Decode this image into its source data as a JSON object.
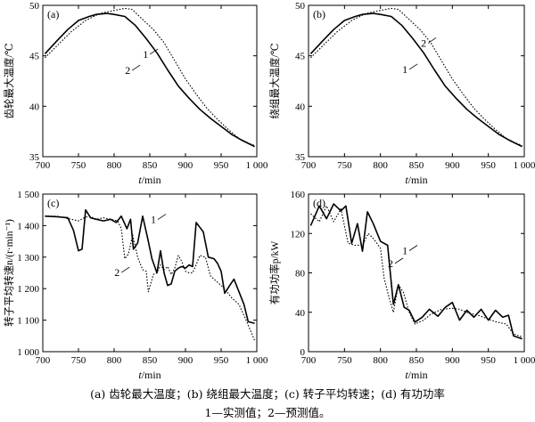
{
  "caption": {
    "line1": "(a) 齿轮最大温度；(b) 绕组最大温度；(c) 转子平均转速；(d) 有功功率",
    "line2": "1—实测值；2—预测值。"
  },
  "chart_data": [
    {
      "type": "line",
      "panel": "(a)",
      "xlabel": "t/min",
      "ylabel": "齿轮最大温度/℃",
      "xlim": [
        700,
        1000
      ],
      "ylim": [
        35,
        50
      ],
      "xticks": [
        700,
        750,
        800,
        850,
        900,
        950,
        1000
      ],
      "xtick_labels": [
        "700",
        "750",
        "800",
        "850",
        "900",
        "950",
        "1 000"
      ],
      "yticks": [
        35,
        40,
        45,
        50
      ],
      "ytick_labels": [
        "35",
        "40",
        "45",
        "50"
      ],
      "series": [
        {
          "name": "1",
          "style": "dotted",
          "points": [
            [
              703,
              44.8
            ],
            [
              720,
              46.0
            ],
            [
              740,
              47.4
            ],
            [
              760,
              48.5
            ],
            [
              780,
              49.2
            ],
            [
              800,
              49.5
            ],
            [
              815,
              49.7
            ],
            [
              825,
              49.6
            ],
            [
              840,
              48.6
            ],
            [
              855,
              47.6
            ],
            [
              870,
              46.3
            ],
            [
              885,
              44.5
            ],
            [
              900,
              42.7
            ],
            [
              915,
              41.2
            ],
            [
              930,
              39.8
            ],
            [
              945,
              38.7
            ],
            [
              960,
              37.7
            ],
            [
              975,
              36.8
            ],
            [
              990,
              36.3
            ],
            [
              997,
              36.1
            ]
          ]
        },
        {
          "name": "2",
          "style": "solid",
          "points": [
            [
              703,
              45.2
            ],
            [
              720,
              46.5
            ],
            [
              735,
              47.6
            ],
            [
              750,
              48.5
            ],
            [
              765,
              48.9
            ],
            [
              775,
              49.1
            ],
            [
              790,
              49.2
            ],
            [
              800,
              49.1
            ],
            [
              815,
              48.9
            ],
            [
              830,
              48.0
            ],
            [
              845,
              46.7
            ],
            [
              860,
              45.3
            ],
            [
              875,
              43.6
            ],
            [
              890,
              42.0
            ],
            [
              905,
              40.8
            ],
            [
              920,
              39.7
            ],
            [
              935,
              38.8
            ],
            [
              950,
              38.0
            ],
            [
              965,
              37.2
            ],
            [
              980,
              36.6
            ],
            [
              997,
              36.0
            ]
          ]
        }
      ],
      "annotations": [
        {
          "text": "1",
          "x": 844,
          "y": 44.8
        },
        {
          "text": "2",
          "x": 819,
          "y": 43.2
        }
      ]
    },
    {
      "type": "line",
      "panel": "(b)",
      "xlabel": "t/min",
      "ylabel": "绕组最大温度/℃",
      "xlim": [
        700,
        1000
      ],
      "ylim": [
        35,
        50
      ],
      "xticks": [
        700,
        750,
        800,
        850,
        900,
        950,
        1000
      ],
      "xtick_labels": [
        "700",
        "750",
        "800",
        "850",
        "900",
        "950",
        "1 000"
      ],
      "yticks": [
        35,
        40,
        45,
        50
      ],
      "ytick_labels": [
        "35",
        "40",
        "45",
        "50"
      ],
      "series": [
        {
          "name": "2",
          "style": "dotted",
          "points": [
            [
              703,
              44.8
            ],
            [
              720,
              46.0
            ],
            [
              740,
              47.4
            ],
            [
              760,
              48.5
            ],
            [
              780,
              49.2
            ],
            [
              800,
              49.5
            ],
            [
              815,
              49.7
            ],
            [
              825,
              49.6
            ],
            [
              840,
              48.6
            ],
            [
              855,
              47.6
            ],
            [
              870,
              46.3
            ],
            [
              885,
              44.5
            ],
            [
              900,
              42.7
            ],
            [
              915,
              41.2
            ],
            [
              930,
              39.8
            ],
            [
              945,
              38.7
            ],
            [
              960,
              37.7
            ],
            [
              975,
              36.8
            ],
            [
              990,
              36.3
            ],
            [
              997,
              36.1
            ]
          ]
        },
        {
          "name": "1",
          "style": "solid",
          "points": [
            [
              703,
              45.2
            ],
            [
              720,
              46.5
            ],
            [
              735,
              47.6
            ],
            [
              750,
              48.5
            ],
            [
              765,
              48.9
            ],
            [
              775,
              49.1
            ],
            [
              790,
              49.2
            ],
            [
              800,
              49.1
            ],
            [
              815,
              48.9
            ],
            [
              830,
              48.0
            ],
            [
              845,
              46.7
            ],
            [
              860,
              45.3
            ],
            [
              875,
              43.6
            ],
            [
              890,
              42.0
            ],
            [
              905,
              40.8
            ],
            [
              920,
              39.7
            ],
            [
              935,
              38.8
            ],
            [
              950,
              38.0
            ],
            [
              965,
              37.2
            ],
            [
              980,
              36.6
            ],
            [
              997,
              36.0
            ]
          ]
        }
      ],
      "annotations": [
        {
          "text": "2",
          "x": 860,
          "y": 45.9
        },
        {
          "text": "1",
          "x": 834,
          "y": 43.3
        }
      ]
    },
    {
      "type": "line",
      "panel": "(c)",
      "xlabel": "t/min",
      "ylabel": "转子平均转速n/(r·min⁻¹)",
      "xlim": [
        700,
        1000
      ],
      "ylim": [
        1000,
        1500
      ],
      "xticks": [
        700,
        750,
        800,
        850,
        900,
        950,
        1000
      ],
      "xtick_labels": [
        "700",
        "750",
        "800",
        "850",
        "900",
        "950",
        "1 000"
      ],
      "yticks": [
        1000,
        1100,
        1200,
        1300,
        1400,
        1500
      ],
      "ytick_labels": [
        "1 000",
        "1 100",
        "1 200",
        "1 300",
        "1 400",
        "1 500"
      ],
      "series": [
        {
          "name": "1",
          "style": "solid",
          "points": [
            [
              703,
              1430
            ],
            [
              720,
              1428
            ],
            [
              735,
              1425
            ],
            [
              743,
              1385
            ],
            [
              750,
              1320
            ],
            [
              755,
              1325
            ],
            [
              760,
              1450
            ],
            [
              767,
              1425
            ],
            [
              775,
              1420
            ],
            [
              785,
              1415
            ],
            [
              795,
              1420
            ],
            [
              803,
              1410
            ],
            [
              810,
              1430
            ],
            [
              818,
              1390
            ],
            [
              823,
              1420
            ],
            [
              827,
              1325
            ],
            [
              833,
              1345
            ],
            [
              840,
              1430
            ],
            [
              847,
              1360
            ],
            [
              853,
              1295
            ],
            [
              860,
              1250
            ],
            [
              865,
              1320
            ],
            [
              870,
              1250
            ],
            [
              875,
              1210
            ],
            [
              880,
              1215
            ],
            [
              885,
              1255
            ],
            [
              890,
              1265
            ],
            [
              895,
              1270
            ],
            [
              900,
              1265
            ],
            [
              905,
              1275
            ],
            [
              910,
              1270
            ],
            [
              915,
              1410
            ],
            [
              920,
              1395
            ],
            [
              925,
              1380
            ],
            [
              932,
              1300
            ],
            [
              940,
              1295
            ],
            [
              945,
              1280
            ],
            [
              950,
              1255
            ],
            [
              955,
              1185
            ],
            [
              962,
              1210
            ],
            [
              968,
              1230
            ],
            [
              975,
              1190
            ],
            [
              982,
              1150
            ],
            [
              988,
              1095
            ],
            [
              997,
              1090
            ]
          ]
        },
        {
          "name": "2",
          "style": "dotted",
          "points": [
            [
              703,
              1430
            ],
            [
              720,
              1430
            ],
            [
              740,
              1420
            ],
            [
              750,
              1415
            ],
            [
              758,
              1425
            ],
            [
              765,
              1430
            ],
            [
              775,
              1420
            ],
            [
              785,
              1425
            ],
            [
              795,
              1420
            ],
            [
              805,
              1415
            ],
            [
              810,
              1390
            ],
            [
              815,
              1295
            ],
            [
              820,
              1310
            ],
            [
              826,
              1370
            ],
            [
              833,
              1300
            ],
            [
              840,
              1260
            ],
            [
              845,
              1255
            ],
            [
              848,
              1190
            ],
            [
              855,
              1245
            ],
            [
              860,
              1250
            ],
            [
              865,
              1275
            ],
            [
              870,
              1260
            ],
            [
              875,
              1270
            ],
            [
              880,
              1245
            ],
            [
              885,
              1265
            ],
            [
              890,
              1305
            ],
            [
              895,
              1285
            ],
            [
              900,
              1255
            ],
            [
              905,
              1250
            ],
            [
              910,
              1250
            ],
            [
              915,
              1275
            ],
            [
              920,
              1305
            ],
            [
              928,
              1300
            ],
            [
              935,
              1240
            ],
            [
              945,
              1220
            ],
            [
              955,
              1200
            ],
            [
              965,
              1170
            ],
            [
              975,
              1150
            ],
            [
              985,
              1100
            ],
            [
              997,
              1035
            ]
          ]
        }
      ],
      "annotations": [
        {
          "text": "1",
          "x": 855,
          "y": 1408
        },
        {
          "text": "2",
          "x": 804,
          "y": 1240
        }
      ]
    },
    {
      "type": "line",
      "panel": "(d)",
      "xlabel": "t/min",
      "ylabel": "有功功率p/kW",
      "xlim": [
        700,
        1000
      ],
      "ylim": [
        0,
        160
      ],
      "xticks": [
        700,
        750,
        800,
        850,
        900,
        950,
        1000
      ],
      "xtick_labels": [
        "700",
        "750",
        "800",
        "850",
        "900",
        "950",
        "1 000"
      ],
      "yticks": [
        0,
        40,
        80,
        120,
        160
      ],
      "ytick_labels": [
        "0",
        "40",
        "80",
        "120",
        "160"
      ],
      "series": [
        {
          "name": "1",
          "style": "solid",
          "points": [
            [
              703,
              128
            ],
            [
              715,
              148
            ],
            [
              725,
              135
            ],
            [
              735,
              150
            ],
            [
              745,
              143
            ],
            [
              752,
              148
            ],
            [
              760,
              110
            ],
            [
              768,
              130
            ],
            [
              775,
              102
            ],
            [
              782,
              142
            ],
            [
              790,
              130
            ],
            [
              800,
              112
            ],
            [
              810,
              108
            ],
            [
              818,
              48
            ],
            [
              825,
              68
            ],
            [
              833,
              45
            ],
            [
              840,
              42
            ],
            [
              848,
              30
            ],
            [
              858,
              35
            ],
            [
              868,
              43
            ],
            [
              880,
              36
            ],
            [
              890,
              45
            ],
            [
              900,
              50
            ],
            [
              910,
              32
            ],
            [
              920,
              42
            ],
            [
              930,
              35
            ],
            [
              940,
              43
            ],
            [
              950,
              32
            ],
            [
              960,
              42
            ],
            [
              970,
              35
            ],
            [
              978,
              37
            ],
            [
              985,
              16
            ],
            [
              997,
              13
            ]
          ]
        },
        {
          "name": "2",
          "style": "dotted",
          "points": [
            [
              703,
              140
            ],
            [
              715,
              132
            ],
            [
              725,
              148
            ],
            [
              735,
              132
            ],
            [
              745,
              145
            ],
            [
              755,
              110
            ],
            [
              765,
              108
            ],
            [
              775,
              108
            ],
            [
              783,
              120
            ],
            [
              790,
              115
            ],
            [
              800,
              105
            ],
            [
              805,
              75
            ],
            [
              812,
              55
            ],
            [
              818,
              40
            ],
            [
              825,
              68
            ],
            [
              832,
              60
            ],
            [
              840,
              40
            ],
            [
              848,
              28
            ],
            [
              860,
              32
            ],
            [
              870,
              38
            ],
            [
              885,
              43
            ],
            [
              900,
              44
            ],
            [
              910,
              43
            ],
            [
              920,
              40
            ],
            [
              930,
              38
            ],
            [
              940,
              36
            ],
            [
              950,
              33
            ],
            [
              962,
              30
            ],
            [
              975,
              28
            ],
            [
              985,
              18
            ],
            [
              997,
              15
            ]
          ]
        }
      ],
      "annotations": [
        {
          "text": "1",
          "x": 834,
          "y": 99
        },
        {
          "text": "2",
          "x": 814,
          "y": 86
        }
      ]
    }
  ]
}
